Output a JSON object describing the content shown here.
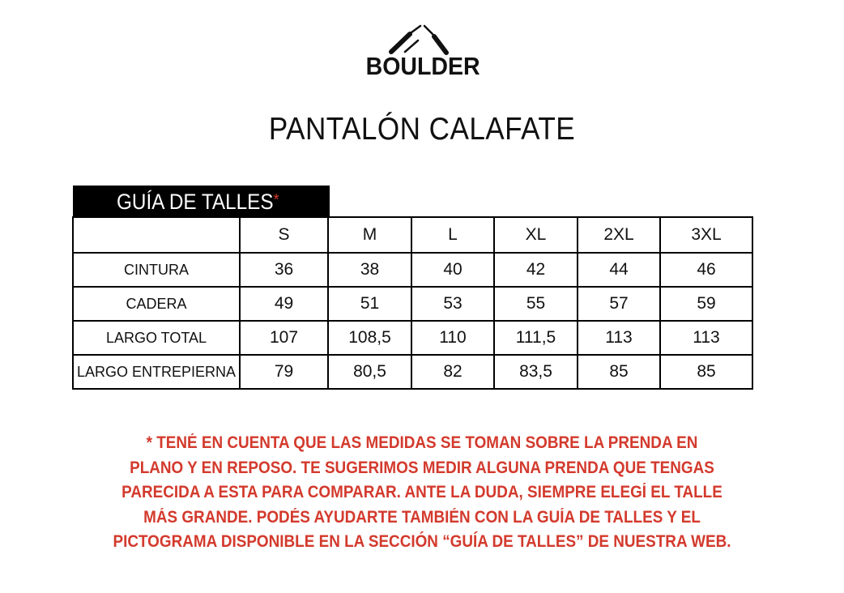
{
  "brand": {
    "logo_text": "BOULDER",
    "logo_icon": "mountain-icon"
  },
  "title": "PANTALÓN CALAFATE",
  "guide": {
    "heading": "GUÍA DE TALLES",
    "asterisk": "*",
    "accent_color": "#d33a2d"
  },
  "table": {
    "sizes": [
      "S",
      "M",
      "L",
      "XL",
      "2XL",
      "3XL"
    ],
    "rows": [
      {
        "label": "CINTURA",
        "values": [
          "36",
          "38",
          "40",
          "42",
          "44",
          "46"
        ]
      },
      {
        "label": "CADERA",
        "values": [
          "49",
          "51",
          "53",
          "55",
          "57",
          "59"
        ]
      },
      {
        "label": "LARGO TOTAL",
        "values": [
          "107",
          "108,5",
          "110",
          "111,5",
          "113",
          "113"
        ]
      },
      {
        "label": "LARGO ENTREPIERNA",
        "values": [
          "79",
          "80,5",
          "82",
          "83,5",
          "85",
          "85"
        ]
      }
    ]
  },
  "note": {
    "lines": [
      "* TENÉ EN CUENTA QUE LAS MEDIDAS SE TOMAN SOBRE LA PRENDA EN",
      "PLANO Y EN REPOSO. TE SUGERIMOS MEDIR ALGUNA PRENDA QUE TENGAS",
      "PARECIDA A ESTA PARA COMPARAR. ANTE LA DUDA, SIEMPRE ELEGÍ EL TALLE",
      "MÁS GRANDE. PODÉS AYUDARTE TAMBIÉN CON LA GUÍA DE TALLES Y EL",
      "PICTOGRAMA DISPONIBLE EN LA SECCIÓN “GUÍA DE TALLES” DE NUESTRA WEB."
    ]
  }
}
